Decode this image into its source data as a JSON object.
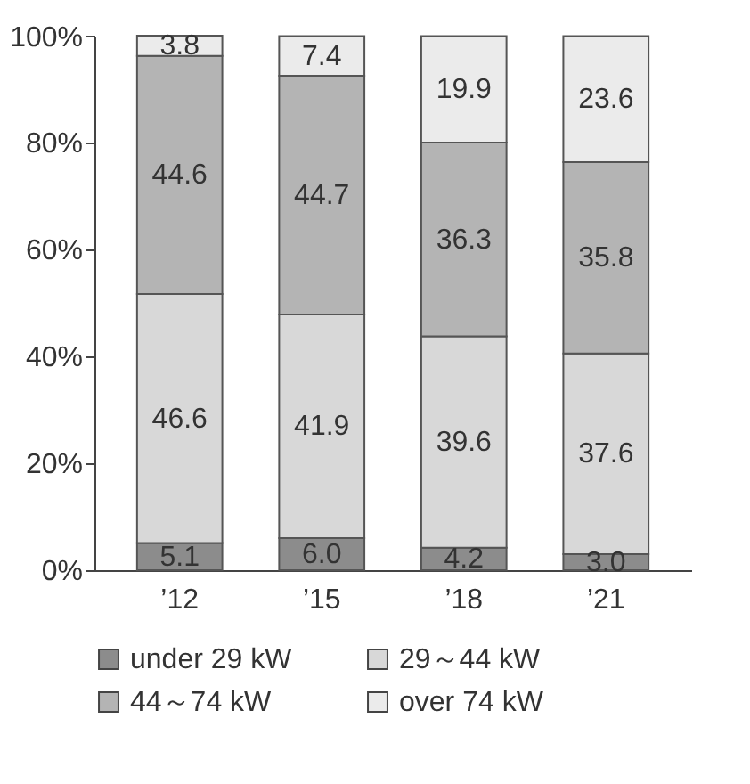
{
  "chart_data": {
    "type": "bar",
    "stacked": true,
    "categories": [
      "’12",
      "’15",
      "’18",
      "’21"
    ],
    "series": [
      {
        "name": "under 29 kW",
        "color": "#8c8c8c",
        "values": [
          5.1,
          6.0,
          4.2,
          3.0
        ],
        "value_labels": [
          "5.1",
          "6.0",
          "4.2",
          "3.0"
        ]
      },
      {
        "name": "29～44 kW",
        "color": "#d8d8d8",
        "values": [
          46.6,
          41.9,
          39.6,
          37.6
        ],
        "value_labels": [
          "46.6",
          "41.9",
          "39.6",
          "37.6"
        ]
      },
      {
        "name": "44～74 kW",
        "color": "#b4b4b4",
        "values": [
          44.6,
          44.7,
          36.3,
          35.8
        ],
        "value_labels": [
          "44.6",
          "44.7",
          "36.3",
          "35.8"
        ]
      },
      {
        "name": "over 74 kW",
        "color": "#ebebeb",
        "values": [
          3.8,
          7.4,
          19.9,
          23.6
        ],
        "value_labels": [
          "3.8",
          "7.4",
          "19.9",
          "23.6"
        ]
      }
    ],
    "ylim": [
      0,
      100.1
    ],
    "yticks": [
      {
        "value": 0,
        "label": "0%"
      },
      {
        "value": 20,
        "label": "20%"
      },
      {
        "value": 40,
        "label": "40%"
      },
      {
        "value": 60,
        "label": "60%"
      },
      {
        "value": 80,
        "label": "80%"
      },
      {
        "value": 100,
        "label": "100%"
      }
    ],
    "grid": false,
    "legend": "bottom"
  }
}
